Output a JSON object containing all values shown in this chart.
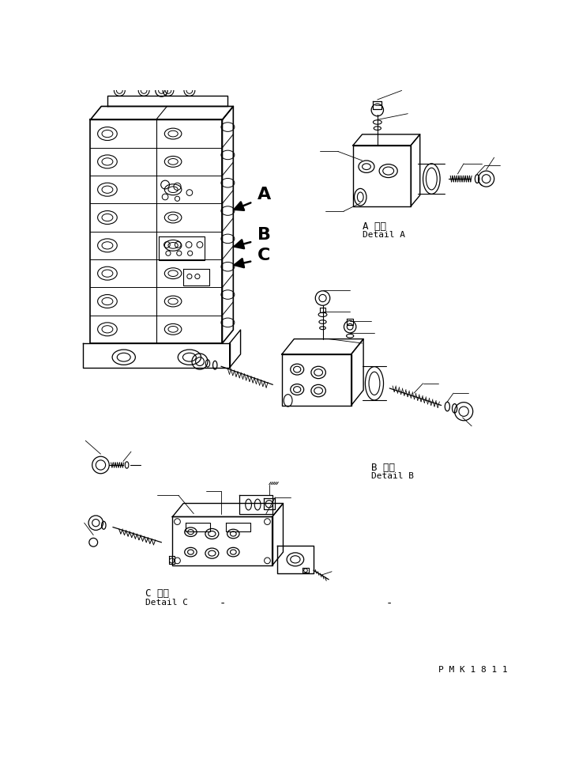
{
  "background_color": "#ffffff",
  "fig_width": 7.28,
  "fig_height": 9.62,
  "dpi": 100,
  "watermark": "P M K 1 8 1 1",
  "labels": {
    "A_japanese": "A 詳細",
    "A_english": "Detail A",
    "B_japanese": "B 詳細",
    "B_english": "Detail B",
    "C_japanese": "C 詳細",
    "C_english": "Detail C",
    "label_A": "A",
    "label_B": "B",
    "label_C": "C"
  },
  "line_color": "#000000",
  "font_size_label": 14,
  "font_size_detail": 8,
  "font_size_watermark": 8
}
